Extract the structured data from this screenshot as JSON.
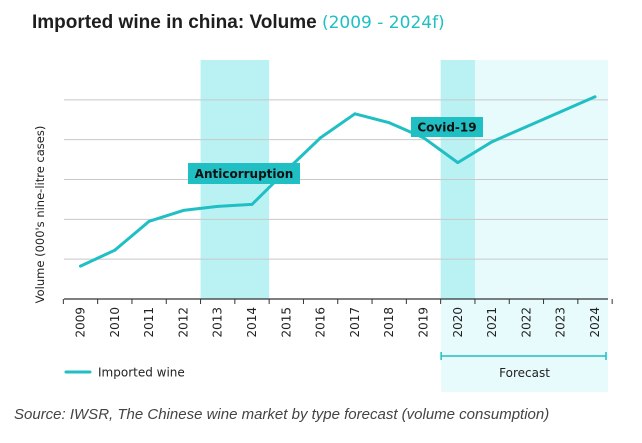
{
  "title": {
    "main": "Imported wine in china: Volume",
    "range": "(2009 - 2024f)"
  },
  "chart_data": {
    "type": "line",
    "title": "Imported wine in china: Volume (2009 - 2024f)",
    "xlabel": "",
    "ylabel": "Volume (000's nine-litre cases)",
    "categories": [
      "2009",
      "2010",
      "2011",
      "2012",
      "2013",
      "2014",
      "2015",
      "2016",
      "2017",
      "2018",
      "2019",
      "2020",
      "2021",
      "2022",
      "2023",
      "2024"
    ],
    "series": [
      {
        "name": "Imported wine",
        "values": [
          3.3,
          4.9,
          7.8,
          8.9,
          9.3,
          9.5,
          12.9,
          16.2,
          18.6,
          17.7,
          16.2,
          13.7,
          15.8,
          17.3,
          18.8,
          20.3
        ]
      }
    ],
    "ylim": [
      0,
      24
    ],
    "grid": true,
    "y_tick_labels_shown": false,
    "annotations": [
      {
        "label": "Anticorruption",
        "from": "2013",
        "to": "2014"
      },
      {
        "label": "Covid-19",
        "from": "2020",
        "to": "2020"
      }
    ],
    "forecast": {
      "label": "Forecast",
      "from": "2020",
      "to": "2024"
    },
    "legend": {
      "position": "bottom-left",
      "entries": [
        "Imported wine"
      ]
    }
  },
  "colors": {
    "line": "#1fbfc4",
    "band": "#baf2f4",
    "forecast_bg": "#e8fbfc",
    "label_bg": "#1fbfc4",
    "grid": "#c8c8c8",
    "axis": "#333333",
    "text": "#222222"
  },
  "source": "Source: IWSR, The Chinese wine market by type forecast (volume consumption)"
}
